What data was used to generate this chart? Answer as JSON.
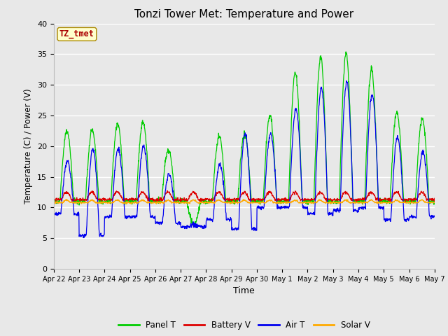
{
  "title": "Tonzi Tower Met: Temperature and Power",
  "ylabel": "Temperature (C) / Power (V)",
  "xlabel": "Time",
  "annotation": "TZ_tmet",
  "ylim": [
    0,
    40
  ],
  "yticks": [
    0,
    5,
    10,
    15,
    20,
    25,
    30,
    35,
    40
  ],
  "xtick_labels": [
    "Apr 22",
    "Apr 23",
    "Apr 24",
    "Apr 25",
    "Apr 26",
    "Apr 27",
    "Apr 28",
    "Apr 29",
    "Apr 30",
    "May 1",
    "May 2",
    "May 3",
    "May 4",
    "May 5",
    "May 6",
    "May 7"
  ],
  "n_days": 15,
  "legend": [
    "Panel T",
    "Battery V",
    "Air T",
    "Solar V"
  ],
  "colors": {
    "Panel T": "#00cc00",
    "Battery V": "#dd0000",
    "Air T": "#0000ee",
    "Solar V": "#ffaa00"
  },
  "plot_bg_color": "#e8e8e8",
  "fig_bg_color": "#e8e8e8",
  "title_fontsize": 11,
  "day_peaks_panel": [
    22.5,
    22.5,
    23.5,
    24.0,
    19.5,
    7.2,
    21.5,
    22.0,
    25.0,
    32.0,
    34.5,
    35.0,
    32.5,
    25.5,
    24.5
  ],
  "day_peaks_air": [
    17.5,
    19.5,
    19.5,
    20.0,
    15.5,
    7.2,
    17.0,
    22.0,
    22.0,
    26.0,
    29.5,
    30.5,
    28.5,
    21.5,
    19.0
  ],
  "day_mins_air": [
    9.0,
    5.5,
    8.5,
    8.5,
    7.5,
    6.8,
    8.0,
    6.5,
    10.0,
    10.0,
    9.0,
    9.5,
    10.0,
    8.0,
    8.5
  ],
  "panel_night": 11.0,
  "air_night": 10.0
}
